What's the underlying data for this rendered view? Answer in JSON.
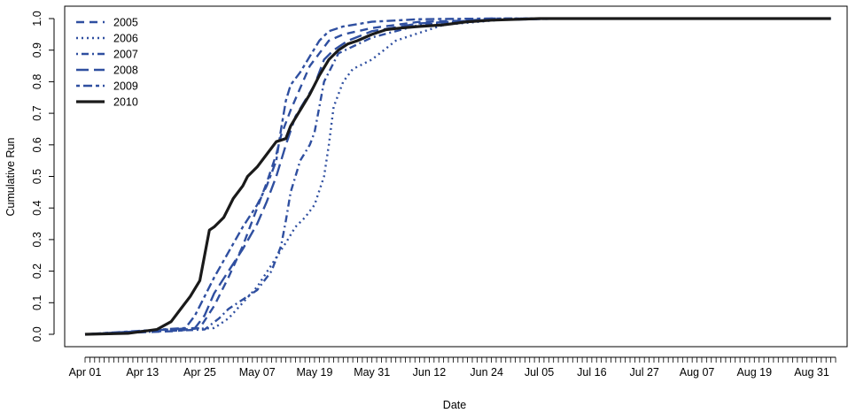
{
  "chart_data": {
    "type": "line",
    "xlabel": "Date",
    "ylabel": "Cumulative Run",
    "xlim": [
      "2010-04-01",
      "2010-09-05"
    ],
    "ylim": [
      0,
      1
    ],
    "x_ticks": [
      "Apr 01",
      "Apr 13",
      "Apr 25",
      "May 07",
      "May 19",
      "May 31",
      "Jun 12",
      "Jun 24",
      "Jul 05",
      "Jul 16",
      "Jul 27",
      "Aug 07",
      "Aug 19",
      "Aug 31"
    ],
    "x_tick_dates": [
      "2010-04-01",
      "2010-04-13",
      "2010-04-25",
      "2010-05-07",
      "2010-05-19",
      "2010-05-31",
      "2010-06-12",
      "2010-06-24",
      "2010-07-05",
      "2010-07-16",
      "2010-07-27",
      "2010-08-07",
      "2010-08-19",
      "2010-08-31"
    ],
    "y_ticks": [
      "0.0",
      "0.1",
      "0.2",
      "0.3",
      "0.4",
      "0.5",
      "0.6",
      "0.7",
      "0.8",
      "0.9",
      "1.0"
    ],
    "y_tick_values": [
      0,
      0.1,
      0.2,
      0.3,
      0.4,
      0.5,
      0.6,
      0.7,
      0.8,
      0.9,
      1.0
    ],
    "minor_x_ticks": "daily",
    "grid": false,
    "legend": "top-left",
    "series": [
      {
        "name": "2005",
        "color": "#2f4fa0",
        "dash": "dashed",
        "x": [
          "2010-04-01",
          "2010-04-20",
          "2010-04-25",
          "2010-04-28",
          "2010-05-01",
          "2010-05-04",
          "2010-05-07",
          "2010-05-09",
          "2010-05-11",
          "2010-05-12",
          "2010-05-14",
          "2010-05-16",
          "2010-05-18",
          "2010-05-20",
          "2010-05-22",
          "2010-05-25",
          "2010-05-31",
          "2010-06-10",
          "2010-06-24",
          "2010-07-10",
          "2010-09-04"
        ],
        "y": [
          0,
          0.01,
          0.02,
          0.09,
          0.18,
          0.28,
          0.4,
          0.48,
          0.57,
          0.63,
          0.71,
          0.78,
          0.85,
          0.89,
          0.93,
          0.95,
          0.97,
          0.99,
          0.995,
          1.0,
          1.0
        ]
      },
      {
        "name": "2006",
        "color": "#2f4fa0",
        "dash": "dotted",
        "x": [
          "2010-04-01",
          "2010-04-28",
          "2010-05-01",
          "2010-05-04",
          "2010-05-07",
          "2010-05-10",
          "2010-05-13",
          "2010-05-15",
          "2010-05-17",
          "2010-05-19",
          "2010-05-21",
          "2010-05-22",
          "2010-05-23",
          "2010-05-25",
          "2010-05-27",
          "2010-05-31",
          "2010-06-05",
          "2010-06-15",
          "2010-06-30",
          "2010-09-04"
        ],
        "y": [
          0,
          0.02,
          0.05,
          0.1,
          0.15,
          0.22,
          0.29,
          0.34,
          0.37,
          0.41,
          0.5,
          0.6,
          0.72,
          0.8,
          0.84,
          0.87,
          0.93,
          0.98,
          1.0,
          1.0
        ]
      },
      {
        "name": "2007",
        "color": "#2f4fa0",
        "dash": "dashdot",
        "x": [
          "2010-04-01",
          "2010-04-26",
          "2010-04-29",
          "2010-05-01",
          "2010-05-04",
          "2010-05-07",
          "2010-05-10",
          "2010-05-12",
          "2010-05-13",
          "2010-05-14",
          "2010-05-16",
          "2010-05-18",
          "2010-05-19",
          "2010-05-21",
          "2010-05-24",
          "2010-05-31",
          "2010-06-10",
          "2010-06-25",
          "2010-09-04"
        ],
        "y": [
          0,
          0.015,
          0.05,
          0.08,
          0.11,
          0.14,
          0.2,
          0.28,
          0.36,
          0.45,
          0.55,
          0.6,
          0.64,
          0.8,
          0.89,
          0.94,
          0.98,
          1.0,
          1.0
        ]
      },
      {
        "name": "2008",
        "color": "#2f4fa0",
        "dash": "longdash",
        "x": [
          "2010-04-01",
          "2010-04-24",
          "2010-04-26",
          "2010-04-28",
          "2010-05-01",
          "2010-05-04",
          "2010-05-07",
          "2010-05-09",
          "2010-05-11",
          "2010-05-13",
          "2010-05-15",
          "2010-05-17",
          "2010-05-19",
          "2010-05-21",
          "2010-05-23",
          "2010-05-26",
          "2010-05-31",
          "2010-06-10",
          "2010-06-24",
          "2010-07-10",
          "2010-09-04"
        ],
        "y": [
          0,
          0.02,
          0.06,
          0.13,
          0.2,
          0.27,
          0.35,
          0.42,
          0.5,
          0.6,
          0.69,
          0.74,
          0.79,
          0.87,
          0.9,
          0.93,
          0.96,
          0.985,
          0.995,
          1.0,
          1.0
        ]
      },
      {
        "name": "2009",
        "color": "#2f4fa0",
        "dash": "twodash",
        "x": [
          "2010-04-01",
          "2010-04-22",
          "2010-04-24",
          "2010-04-26",
          "2010-04-28",
          "2010-05-01",
          "2010-05-04",
          "2010-05-07",
          "2010-05-09",
          "2010-05-11",
          "2010-05-12",
          "2010-05-13",
          "2010-05-14",
          "2010-05-16",
          "2010-05-18",
          "2010-05-20",
          "2010-05-22",
          "2010-05-25",
          "2010-05-31",
          "2010-06-10",
          "2010-06-24",
          "2010-09-04"
        ],
        "y": [
          0,
          0.02,
          0.06,
          0.12,
          0.18,
          0.26,
          0.34,
          0.41,
          0.47,
          0.55,
          0.65,
          0.74,
          0.79,
          0.83,
          0.88,
          0.93,
          0.96,
          0.975,
          0.99,
          0.998,
          1.0,
          1.0
        ]
      },
      {
        "name": "2010",
        "color": "#1a1a1a",
        "dash": "solid",
        "x": [
          "2010-04-01",
          "2010-04-10",
          "2010-04-16",
          "2010-04-19",
          "2010-04-21",
          "2010-04-23",
          "2010-04-25",
          "2010-04-27",
          "2010-04-28",
          "2010-04-30",
          "2010-05-02",
          "2010-05-04",
          "2010-05-05",
          "2010-05-07",
          "2010-05-09",
          "2010-05-11",
          "2010-05-13",
          "2010-05-14",
          "2010-05-16",
          "2010-05-18",
          "2010-05-20",
          "2010-05-22",
          "2010-05-24",
          "2010-05-26",
          "2010-05-28",
          "2010-05-31",
          "2010-06-03",
          "2010-06-06",
          "2010-06-10",
          "2010-06-15",
          "2010-06-20",
          "2010-06-25",
          "2010-07-05",
          "2010-09-04"
        ],
        "y": [
          0,
          0.003,
          0.015,
          0.04,
          0.08,
          0.12,
          0.17,
          0.33,
          0.34,
          0.37,
          0.43,
          0.47,
          0.5,
          0.53,
          0.57,
          0.61,
          0.62,
          0.66,
          0.71,
          0.76,
          0.82,
          0.87,
          0.9,
          0.92,
          0.93,
          0.95,
          0.965,
          0.97,
          0.975,
          0.98,
          0.99,
          0.995,
          1.0,
          1.0
        ]
      }
    ]
  }
}
